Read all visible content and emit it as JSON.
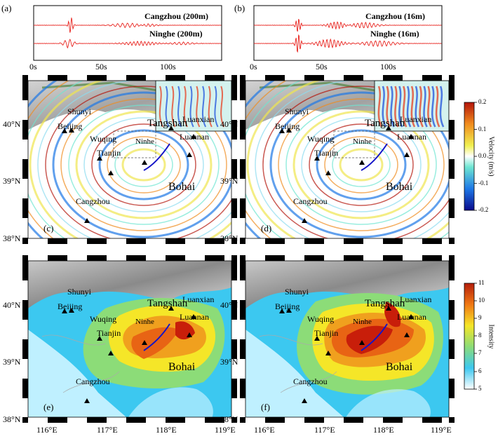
{
  "panels": {
    "a": {
      "label": "(a)",
      "traces": [
        "Cangzhou (200m)",
        "Ninghe (200m)"
      ],
      "time_ticks": [
        "0s",
        "50s",
        "100s"
      ]
    },
    "b": {
      "label": "(b)",
      "traces": [
        "Cangzhou (16m)",
        "Ninghe (16m)"
      ],
      "time_ticks": [
        "0s",
        "50s",
        "100s"
      ]
    },
    "c": {
      "label": "(c)"
    },
    "d": {
      "label": "(d)"
    },
    "e": {
      "label": "(e)"
    },
    "f": {
      "label": "(f)"
    }
  },
  "places": {
    "shunyi": "Shunyi",
    "beijing": "Beijing",
    "tangshan": "Tangshan",
    "luanxian": "Luanxian",
    "luannan": "Luannan",
    "wuqing": "Wuqing",
    "ninhe": "Ninhe",
    "tianjin": "Tianjin",
    "bohai": "Bohai",
    "cangzhou": "Cangzhou"
  },
  "axes": {
    "lat_ticks": [
      "40°N",
      "39°N",
      "38°N"
    ],
    "lon_ticks": [
      "116°E",
      "117°E",
      "118°E",
      "119°E"
    ]
  },
  "velocity_colorbar": {
    "title": "Velocity (m/s)",
    "ticks": [
      "0.2",
      "0.1",
      "0.0",
      "-0.1",
      "-0.2"
    ]
  },
  "intensity_colorbar": {
    "title": "Intensity",
    "ticks": [
      "11",
      "10",
      "9",
      "8",
      "7",
      "6",
      "5"
    ]
  },
  "colors": {
    "trace": "#e8231e",
    "fault": "#1414c8",
    "intensity_low": "#bff0ff",
    "intensity_mid": "#f5e628",
    "intensity_high": "#c81e0a"
  }
}
